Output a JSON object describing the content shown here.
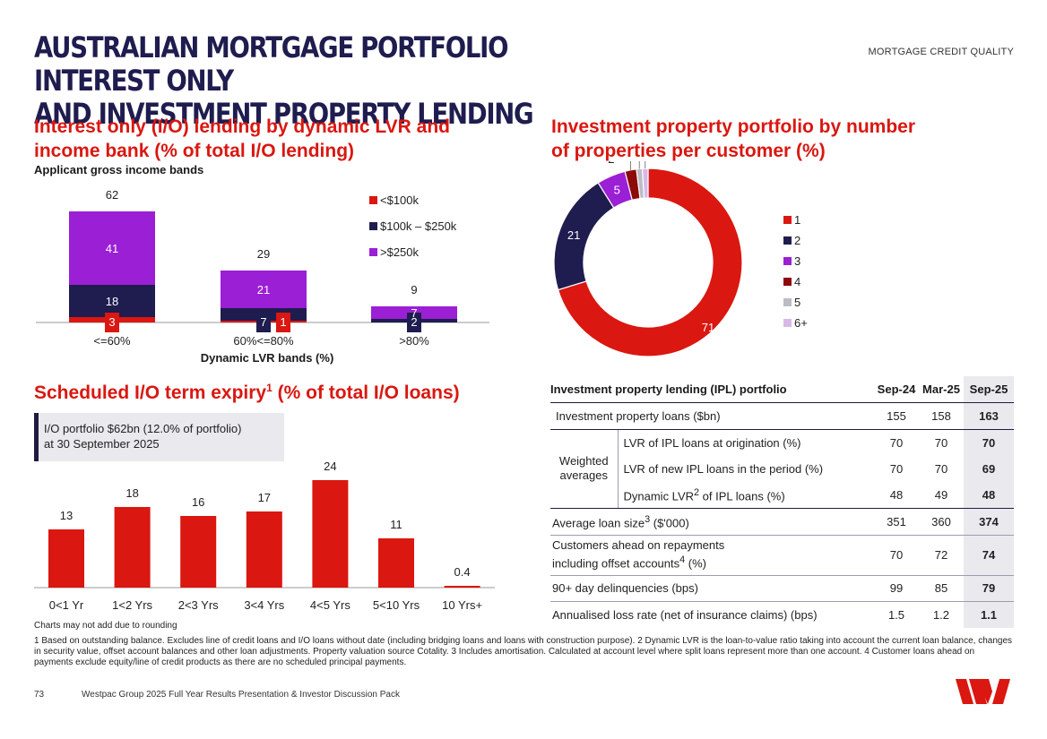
{
  "page": {
    "title_line1": "AUSTRALIAN MORTGAGE PORTFOLIO INTEREST ONLY",
    "title_line2": "AND INVESTMENT PROPERTY LENDING",
    "section": "MORTGAGE CREDIT QUALITY"
  },
  "colors": {
    "red": "#da1710",
    "navy": "#1f1c4f",
    "purple": "#9b1fd4",
    "maroon": "#8c0a0a",
    "grey": "#bcbcc4",
    "lilac": "#d9b8e8"
  },
  "chart_data": [
    {
      "type": "bar",
      "stacked": true,
      "title_line1": "Interest only (I/O) lending by dynamic LVR and",
      "title_line2": "income bank (% of total I/O lending)",
      "subtitle": "Applicant gross income bands",
      "xlabel": "Dynamic LVR bands (%)",
      "categories": [
        "<=60%",
        "60%<=80%",
        ">80%"
      ],
      "series": [
        {
          "name": "<$100k",
          "values": [
            3,
            1,
            0
          ]
        },
        {
          "name": "$100k – $250k",
          "values": [
            18,
            7,
            2
          ]
        },
        {
          "name": ">$250k",
          "values": [
            41,
            21,
            7
          ]
        }
      ],
      "totals": [
        62,
        29,
        9
      ],
      "ylim": [
        0,
        65
      ]
    },
    {
      "type": "pie",
      "donut": true,
      "title_line1": "Investment property portfolio by number",
      "title_line2": "of properties per customer (%)",
      "labels": [
        "1",
        "2",
        "3",
        "4",
        "5",
        "6+"
      ],
      "values": [
        71,
        21,
        5,
        2,
        1,
        1
      ]
    },
    {
      "type": "bar",
      "title": "Scheduled I/O term expiry",
      "title_sup": "1",
      "title_tail": " (% of total I/O loans)",
      "categories": [
        "0<1 Yr",
        "1<2 Yrs",
        "2<3 Yrs",
        "3<4 Yrs",
        "4<5 Yrs",
        "5<10 Yrs",
        "10 Yrs+"
      ],
      "values": [
        13,
        18,
        16,
        17,
        24,
        11,
        0.4
      ],
      "value_labels": [
        "13",
        "18",
        "16",
        "17",
        "24",
        "11",
        "0.4"
      ],
      "ylim": [
        0,
        26
      ],
      "callout_line1": "I/O portfolio $62bn (12.0% of portfolio)",
      "callout_line2": "at 30 September 2025"
    }
  ],
  "table": {
    "title": "Investment property lending (IPL) portfolio",
    "headers": [
      "Sep-24",
      "Mar-25",
      "Sep-25"
    ],
    "group_label_line1": "Weighted",
    "group_label_line2": "averages",
    "rows": [
      {
        "label": "Investment property loans ($bn)",
        "values": [
          "155",
          "158",
          "163"
        ]
      },
      {
        "label": "LVR of IPL loans at origination (%)",
        "values": [
          "70",
          "70",
          "70"
        ]
      },
      {
        "label": "LVR of new IPL loans in the period (%)",
        "values": [
          "70",
          "70",
          "69"
        ]
      },
      {
        "label_a": "Dynamic LVR",
        "label_sup": "2",
        "label_b": " of IPL loans (%)",
        "values": [
          "48",
          "49",
          "48"
        ]
      },
      {
        "label_a": "Average loan size",
        "label_sup": "3",
        "label_b": " ($'000)",
        "values": [
          "351",
          "360",
          "374"
        ]
      },
      {
        "label_line1": "Customers ahead on repayments",
        "label_line2a": "including offset accounts",
        "label_sup": "4",
        "label_line2b": " (%)",
        "values": [
          "70",
          "72",
          "74"
        ]
      },
      {
        "label": "90+ day delinquencies (bps)",
        "values": [
          "99",
          "85",
          "79"
        ]
      },
      {
        "label": "Annualised loss rate (net of insurance claims) (bps)",
        "values": [
          "1.5",
          "1.2",
          "1.1"
        ]
      }
    ]
  },
  "notes": {
    "rounding": "Charts may not add due to rounding",
    "footnotes": "1 Based on outstanding balance. Excludes line of credit loans and I/O loans without date (including bridging loans and loans with construction purpose). 2 Dynamic LVR is the loan-to-value ratio taking into account the current loan balance, changes in security value, offset account balances and other loan adjustments. Property valuation source Cotality. 3 Includes amortisation. Calculated at account level where split loans represent more than one account. 4 Customer loans ahead on payments exclude equity/line of credit products as there are no scheduled principal payments."
  },
  "footer": {
    "page_number": "73",
    "text": "Westpac Group 2025 Full Year Results Presentation & Investor Discussion Pack"
  }
}
